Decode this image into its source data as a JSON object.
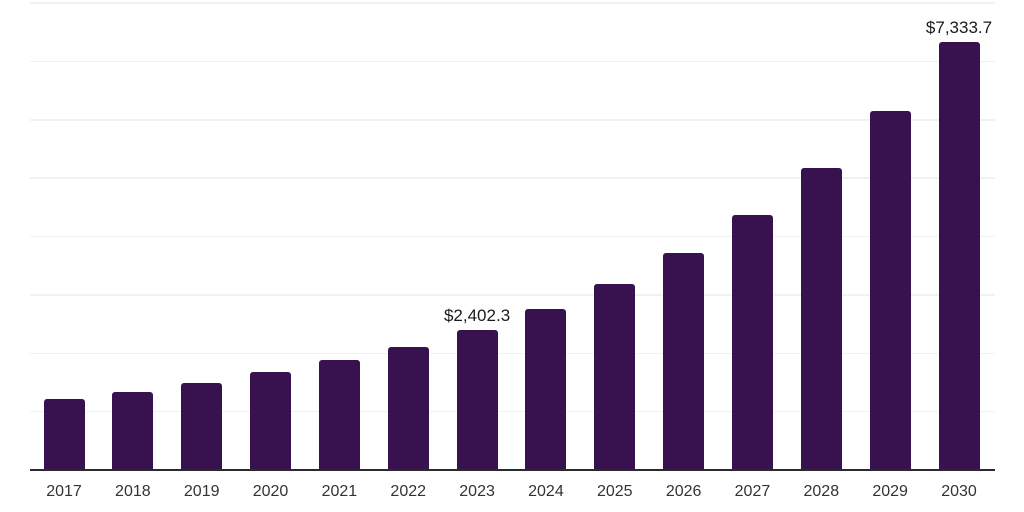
{
  "chart_data": {
    "type": "bar",
    "title": "",
    "xlabel": "",
    "ylabel": "",
    "categories": [
      "2017",
      "2018",
      "2019",
      "2020",
      "2021",
      "2022",
      "2023",
      "2024",
      "2025",
      "2026",
      "2027",
      "2028",
      "2029",
      "2030"
    ],
    "values": [
      1210,
      1340,
      1490,
      1680,
      1880,
      2110,
      2402.3,
      2750,
      3180,
      3720,
      4370,
      5170,
      6150,
      7333.7
    ],
    "data_labels": [
      "",
      "",
      "",
      "",
      "",
      "",
      "$2,402.3",
      "",
      "",
      "",
      "",
      "",
      "",
      "$7,333.7"
    ],
    "ylim": [
      0,
      8000
    ],
    "gridline_interval": 1000,
    "grid": true,
    "legend": false,
    "y_axis_labels_visible": false,
    "colors": {
      "bar": "#38114F",
      "axis": "#2b2b2b",
      "gridline": "#f1f1f1",
      "tick_label": "#333333",
      "data_label": "#1a1a1a",
      "background": "#ffffff"
    }
  }
}
